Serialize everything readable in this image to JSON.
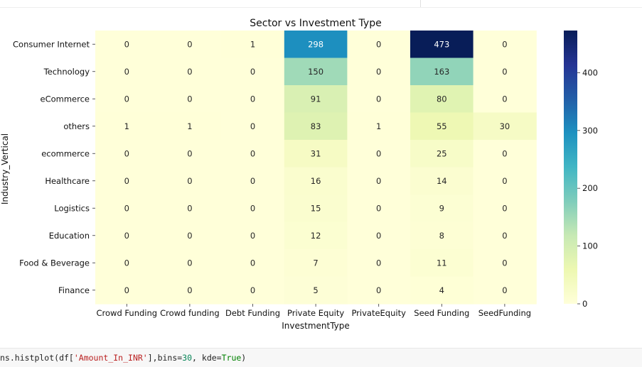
{
  "chart_data": {
    "type": "heatmap",
    "title": "Sector vs Investment Type",
    "xlabel": "InvestmentType",
    "ylabel": "Industry_Vertical",
    "x_categories": [
      "Crowd Funding",
      "Crowd funding",
      "Debt Funding",
      "Private Equity",
      "PrivateEquity",
      "Seed Funding",
      "SeedFunding"
    ],
    "y_categories": [
      "Consumer Internet",
      "Technology",
      "eCommerce",
      "others",
      "ecommerce",
      "Healthcare",
      "Logistics",
      "Education",
      "Food & Beverage",
      "Finance"
    ],
    "values": [
      [
        0,
        0,
        1,
        298,
        0,
        473,
        0
      ],
      [
        0,
        0,
        0,
        150,
        0,
        163,
        0
      ],
      [
        0,
        0,
        0,
        91,
        0,
        80,
        0
      ],
      [
        1,
        1,
        0,
        83,
        1,
        55,
        30
      ],
      [
        0,
        0,
        0,
        31,
        0,
        25,
        0
      ],
      [
        0,
        0,
        0,
        16,
        0,
        14,
        0
      ],
      [
        0,
        0,
        0,
        15,
        0,
        9,
        0
      ],
      [
        0,
        0,
        0,
        12,
        0,
        8,
        0
      ],
      [
        0,
        0,
        0,
        7,
        0,
        11,
        0
      ],
      [
        0,
        0,
        0,
        5,
        0,
        4,
        0
      ]
    ],
    "colormap": "YlGnBu",
    "vmin": 0,
    "vmax": 473,
    "colorbar_ticks": [
      0,
      100,
      200,
      300,
      400
    ],
    "annotated": true
  },
  "code": {
    "prefix": "ns.histplot(df[",
    "string": "'Amount_In_INR'",
    "mid": "],bins=",
    "number": "30",
    "sep": ", kde=",
    "keyword": "True",
    "suffix": ")"
  }
}
